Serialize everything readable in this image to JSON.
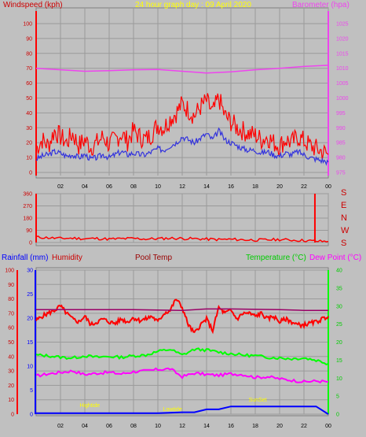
{
  "chart_data": [
    {
      "type": "line",
      "title": "24 hour graph day : 09 April 2020",
      "left_axis_label": "Windspeed (kph)",
      "right_axis_label": "Barometer (hpa)",
      "x_ticks": [
        "02",
        "04",
        "06",
        "08",
        "10",
        "12",
        "14",
        "16",
        "18",
        "20",
        "22",
        "00"
      ],
      "y_left_ticks": [
        "0",
        "10",
        "20",
        "30",
        "40",
        "50",
        "60",
        "70",
        "80",
        "90",
        "100"
      ],
      "y_left_range": [
        0,
        100
      ],
      "y_right_ticks": [
        "975",
        "980",
        "985",
        "990",
        "995",
        "1000",
        "1005",
        "1010",
        "1015",
        "1020",
        "1025"
      ],
      "y_right_range": [
        975,
        1025
      ],
      "grid": true,
      "series": [
        {
          "key": "gust",
          "color": "#ff0000",
          "x": [
            0,
            0.5,
            1,
            1.5,
            2,
            2.5,
            3,
            3.5,
            4,
            4.5,
            5,
            5.5,
            6,
            6.5,
            7,
            7.5,
            8,
            8.5,
            9,
            9.5,
            10,
            10.5,
            11,
            11.5,
            12,
            12.5,
            13,
            13.5,
            14,
            14.5,
            15,
            15.5,
            16,
            16.5,
            17,
            17.5,
            18,
            18.5,
            19,
            19.5,
            20,
            20.5,
            21,
            21.5,
            22,
            22.5,
            23,
            23.5,
            24
          ],
          "values": [
            16,
            22,
            18,
            28,
            24,
            20,
            26,
            18,
            22,
            17,
            20,
            24,
            19,
            22,
            26,
            21,
            28,
            24,
            22,
            26,
            32,
            30,
            36,
            40,
            46,
            42,
            38,
            44,
            48,
            40,
            50,
            38,
            34,
            30,
            28,
            26,
            25,
            22,
            24,
            20,
            18,
            22,
            20,
            24,
            21,
            18,
            16,
            14,
            12
          ]
        },
        {
          "key": "average",
          "color": "#3333dd",
          "x": [
            0,
            0.5,
            1,
            1.5,
            2,
            2.5,
            3,
            3.5,
            4,
            4.5,
            5,
            5.5,
            6,
            6.5,
            7,
            7.5,
            8,
            8.5,
            9,
            9.5,
            10,
            10.5,
            11,
            11.5,
            12,
            12.5,
            13,
            13.5,
            14,
            14.5,
            15,
            15.5,
            16,
            16.5,
            17,
            17.5,
            18,
            18.5,
            19,
            19.5,
            20,
            20.5,
            21,
            21.5,
            22,
            22.5,
            23,
            23.5,
            24
          ],
          "values": [
            9,
            11,
            12,
            14,
            13,
            11,
            12,
            10,
            12,
            9,
            10,
            12,
            10,
            12,
            14,
            12,
            13,
            12,
            12,
            14,
            16,
            15,
            18,
            20,
            24,
            22,
            20,
            23,
            26,
            22,
            28,
            22,
            20,
            18,
            16,
            15,
            15,
            13,
            14,
            12,
            11,
            13,
            12,
            14,
            12,
            10,
            9,
            8,
            7
          ]
        },
        {
          "key": "barometer",
          "axis": "right",
          "color": "#ee44ee",
          "x": [
            0,
            2,
            4,
            6,
            8,
            10,
            12,
            14,
            16,
            18,
            20,
            22,
            24
          ],
          "values": [
            1010,
            1009.5,
            1009,
            1009.2,
            1009.5,
            1009.6,
            1009,
            1008.4,
            1008.8,
            1009.5,
            1010,
            1010.6,
            1011
          ]
        }
      ]
    },
    {
      "type": "line",
      "right_labels": [
        "S",
        "E",
        "N",
        "W",
        "S"
      ],
      "y_left_ticks": [
        "0",
        "90",
        "180",
        "270",
        "360"
      ],
      "y_left_range": [
        0,
        360
      ],
      "series": [
        {
          "key": "direction",
          "color": "#ff0000",
          "x": [
            0,
            1,
            2,
            3,
            4,
            5,
            6,
            7,
            8,
            9,
            10,
            11,
            12,
            13,
            14,
            15,
            16,
            17,
            18,
            19,
            20,
            21,
            22,
            23,
            24
          ],
          "values": [
            40,
            35,
            30,
            32,
            28,
            30,
            25,
            28,
            30,
            26,
            28,
            32,
            30,
            28,
            25,
            22,
            24,
            20,
            18,
            20,
            22,
            18,
            15,
            10,
            8
          ]
        }
      ]
    },
    {
      "type": "line",
      "legend": [
        "Rainfall (mm)",
        "Humidity",
        "Pool Temp",
        "Temperature (°C)",
        "Dew Point (°C)"
      ],
      "x_ticks": [
        "02",
        "04",
        "06",
        "08",
        "10",
        "12",
        "14",
        "16",
        "18",
        "20",
        "22",
        "00"
      ],
      "y_humidity_ticks": [
        "0",
        "10",
        "20",
        "30",
        "40",
        "50",
        "60",
        "70",
        "80",
        "90",
        "100"
      ],
      "y_humidity_range": [
        0,
        100
      ],
      "y_rain_ticks": [
        "0",
        "5",
        "10",
        "15",
        "20",
        "25",
        "30"
      ],
      "y_rain_range": [
        0,
        30
      ],
      "y_temp_ticks": [
        "0",
        "5",
        "10",
        "15",
        "20",
        "25",
        "30",
        "35",
        "40"
      ],
      "y_temp_range": [
        0,
        40
      ],
      "annotations": [
        {
          "text": "Hightide",
          "x": 4.4
        },
        {
          "text": "Lowtide",
          "x": 11.2
        },
        {
          "text": "SunSet",
          "x": 18.2
        }
      ],
      "series": [
        {
          "key": "humidity",
          "color": "#ff0000",
          "x": [
            0,
            0.5,
            1,
            1.5,
            2,
            2.5,
            3,
            3.5,
            4,
            4.5,
            5,
            5.5,
            6,
            6.5,
            7,
            7.5,
            8,
            8.5,
            9,
            9.5,
            10,
            10.5,
            11,
            11.5,
            12,
            12.5,
            13,
            13.5,
            14,
            14.5,
            15,
            15.5,
            16,
            16.5,
            17,
            17.5,
            18,
            18.5,
            19,
            19.5,
            20,
            20.5,
            21,
            21.5,
            22,
            22.5,
            23,
            23.5,
            24
          ],
          "values": [
            65,
            68,
            70,
            72,
            75,
            70,
            66,
            64,
            68,
            62,
            64,
            66,
            64,
            63,
            66,
            64,
            67,
            65,
            66,
            68,
            64,
            70,
            72,
            80,
            74,
            62,
            56,
            62,
            66,
            58,
            74,
            70,
            72,
            66,
            70,
            70,
            68,
            70,
            66,
            68,
            64,
            66,
            64,
            62,
            62,
            63,
            64,
            66,
            68
          ]
        },
        {
          "key": "pool_temp",
          "axis": "temp",
          "color": "#990066",
          "x": [
            0,
            4,
            8,
            12,
            14,
            16,
            20,
            22,
            24
          ],
          "values": [
            29,
            29,
            29,
            28.8,
            29.2,
            29.2,
            29.0,
            28.8,
            28.8
          ]
        },
        {
          "key": "temperature",
          "axis": "temp",
          "color": "#00ff00",
          "x": [
            0,
            1,
            2,
            3,
            4,
            5,
            6,
            7,
            8,
            9,
            10,
            11,
            12,
            13,
            14,
            15,
            16,
            17,
            18,
            19,
            20,
            21,
            22,
            23,
            24
          ],
          "values": [
            16.4,
            16.2,
            15.8,
            15.6,
            16.2,
            15.8,
            16.0,
            15.8,
            16.2,
            16.4,
            17.4,
            18,
            16.4,
            18,
            17.8,
            17.2,
            16.8,
            16.4,
            16.2,
            15.8,
            15.6,
            15.4,
            15.6,
            15,
            14
          ]
        },
        {
          "key": "dew_point",
          "axis": "temp",
          "color": "#ff00ff",
          "x": [
            0,
            1,
            2,
            3,
            4,
            5,
            6,
            7,
            8,
            9,
            10,
            11,
            12,
            13,
            14,
            15,
            16,
            17,
            18,
            19,
            20,
            21,
            22,
            23,
            24
          ],
          "values": [
            10.6,
            11.2,
            11.6,
            12,
            11,
            11.4,
            11.6,
            11.2,
            11.8,
            12,
            12.4,
            12.6,
            10.4,
            11.4,
            11,
            10.8,
            11.2,
            11,
            10.2,
            10.4,
            9.8,
            9.4,
            9,
            9.2,
            9
          ]
        },
        {
          "key": "rainfall",
          "axis": "rain",
          "color": "#0000ff",
          "x": [
            0,
            2,
            4,
            6,
            8,
            10,
            12,
            13,
            14,
            15,
            16,
            17,
            18,
            19,
            20,
            21,
            22,
            23,
            24
          ],
          "values": [
            0.2,
            0.2,
            0.2,
            0.2,
            0.2,
            0.2,
            0.4,
            0.4,
            1.0,
            1.0,
            1.6,
            1.6,
            1.6,
            1.6,
            1.6,
            1.6,
            1.6,
            1.6,
            0.0
          ]
        }
      ]
    }
  ]
}
